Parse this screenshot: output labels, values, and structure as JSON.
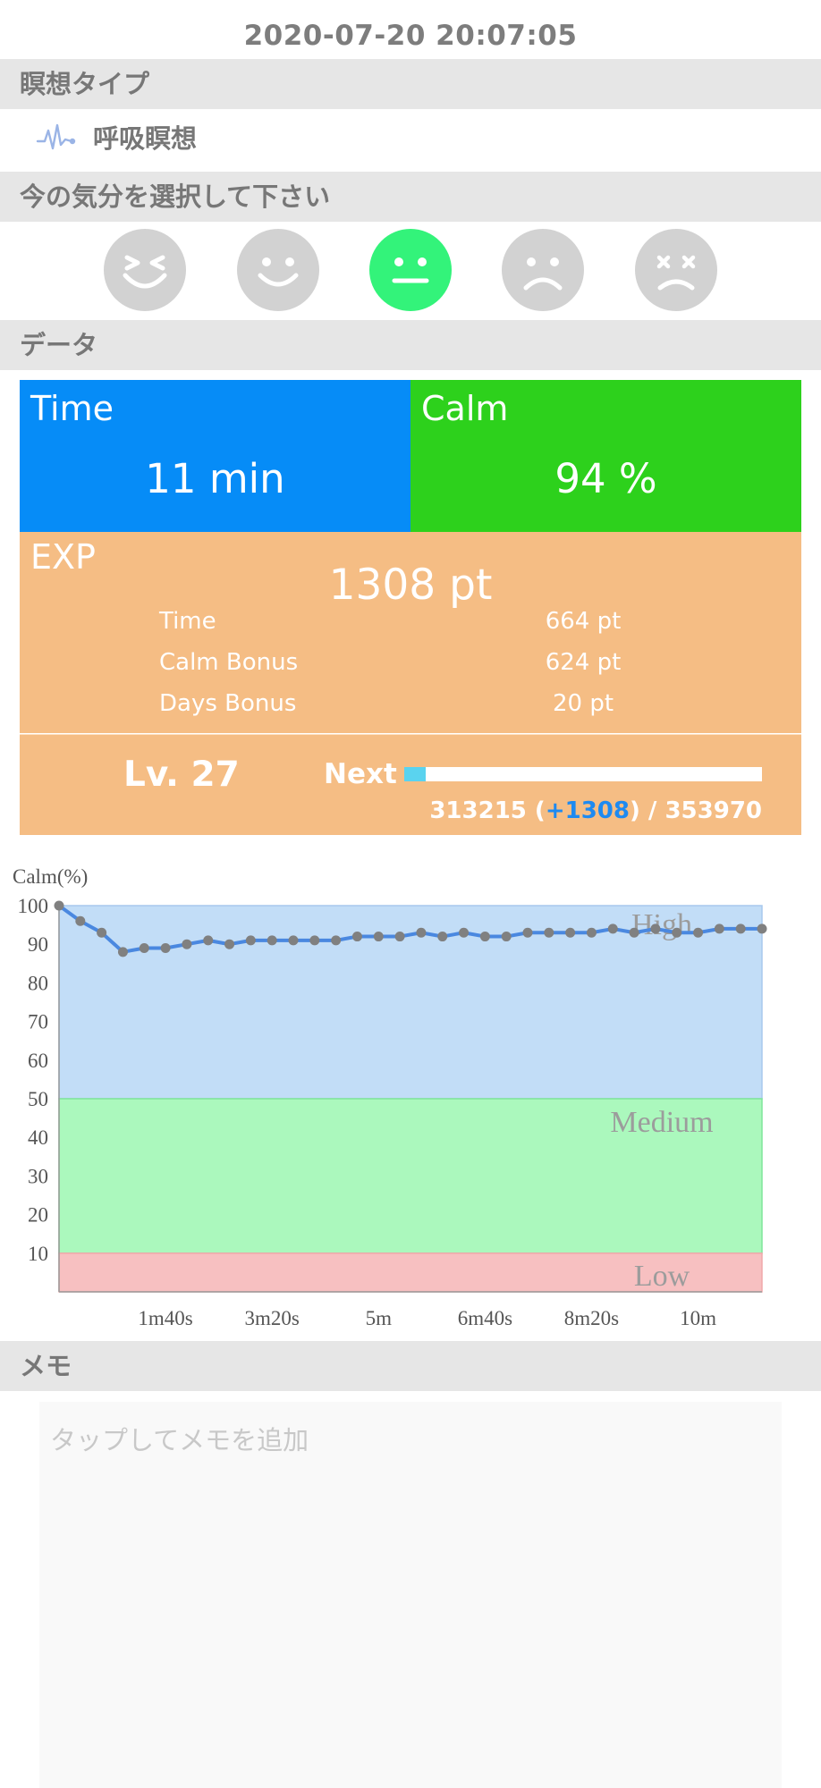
{
  "header": {
    "datetime": "2020-07-20 20:07:05"
  },
  "sections": {
    "meditation_type": "瞑想タイプ",
    "mood": "今の気分を選択して下さい",
    "data": "データ",
    "memo": "メモ"
  },
  "meditation": {
    "type_label": "呼吸瞑想",
    "icon": "pulse-wave-icon"
  },
  "moods": [
    {
      "name": "laughing-face-icon",
      "selected": false
    },
    {
      "name": "smiling-face-icon",
      "selected": false
    },
    {
      "name": "neutral-face-icon",
      "selected": true
    },
    {
      "name": "sad-face-icon",
      "selected": false
    },
    {
      "name": "dizzy-face-icon",
      "selected": false
    }
  ],
  "stats": {
    "time_title": "Time",
    "time_value": "11 min",
    "calm_title": "Calm",
    "calm_value": "94 %",
    "exp_title": "EXP",
    "exp_total": "1308 pt",
    "exp_rows": [
      {
        "label": "Time",
        "value": "664 pt"
      },
      {
        "label": "Calm Bonus",
        "value": "624 pt"
      },
      {
        "label": "Days Bonus",
        "value": "20 pt"
      }
    ],
    "level": "Lv. 27",
    "next_label": "Next",
    "progress_fraction": 0.06,
    "progress_current": "313215 (",
    "progress_gain": "+1308",
    "progress_tail": ") / 353970"
  },
  "colors": {
    "time_card": "#068cf7",
    "calm_card": "#2dd11c",
    "exp_card": "#f5bd84",
    "progress_fill": "#5ad3ef",
    "selected_mood": "#33f37a",
    "zone_high": "#c2ddf7",
    "zone_medium": "#abf8bd",
    "zone_low": "#f7c0c1",
    "line": "#4a88e0",
    "point": "#808080"
  },
  "chart_data": {
    "type": "line",
    "ylabel": "Calm(%)",
    "ylim": [
      0,
      100
    ],
    "yticks": [
      10,
      20,
      30,
      40,
      50,
      60,
      70,
      80,
      90,
      100
    ],
    "xlim": [
      0,
      660
    ],
    "xticks": [
      {
        "value": 100,
        "label": "1m40s"
      },
      {
        "value": 200,
        "label": "3m20s"
      },
      {
        "value": 300,
        "label": "5m"
      },
      {
        "value": 400,
        "label": "6m40s"
      },
      {
        "value": 500,
        "label": "8m20s"
      },
      {
        "value": 600,
        "label": "10m"
      }
    ],
    "zones": [
      {
        "name": "High",
        "from": 50,
        "to": 100
      },
      {
        "name": "Medium",
        "from": 10,
        "to": 50
      },
      {
        "name": "Low",
        "from": 0,
        "to": 10
      }
    ],
    "x": [
      0,
      20,
      40,
      60,
      80,
      100,
      120,
      140,
      160,
      180,
      200,
      220,
      240,
      260,
      280,
      300,
      320,
      340,
      360,
      380,
      400,
      420,
      440,
      460,
      480,
      500,
      520,
      540,
      560,
      580,
      600,
      620,
      640,
      660
    ],
    "values": [
      100,
      96,
      93,
      88,
      89,
      89,
      90,
      91,
      90,
      91,
      91,
      91,
      91,
      91,
      92,
      92,
      92,
      93,
      92,
      93,
      92,
      92,
      93,
      93,
      93,
      93,
      94,
      93,
      94,
      93,
      93,
      94,
      94,
      94
    ]
  },
  "memo": {
    "placeholder": "タップしてメモを追加"
  }
}
